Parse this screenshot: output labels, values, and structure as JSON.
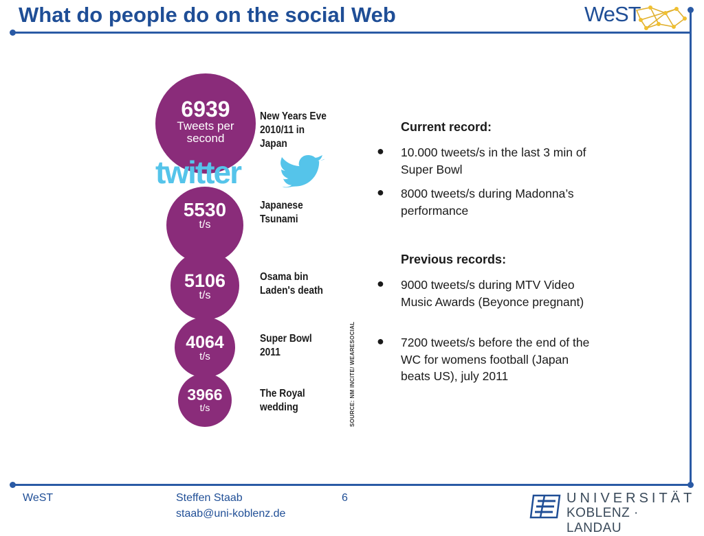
{
  "slide": {
    "title": "What do people do on the social Web"
  },
  "logo": {
    "text": "WeST"
  },
  "twitter_logo": {
    "text": "twitter",
    "color": "#55c4ea"
  },
  "circles": [
    {
      "value": "6939",
      "unit_line1": "Tweets per",
      "unit_line2": "second",
      "event_line1": "New Years Eve",
      "event_line2": "2010/11 in",
      "event_line3": "Japan"
    },
    {
      "value": "5530",
      "unit_line1": "t/s",
      "event_line1": "Japanese",
      "event_line2": "Tsunami"
    },
    {
      "value": "5106",
      "unit_line1": "t/s",
      "event_line1": "Osama bin",
      "event_line2": "Laden's death"
    },
    {
      "value": "4064",
      "unit_line1": "t/s",
      "event_line1": "Super Bowl",
      "event_line2": "2011"
    },
    {
      "value": "3966",
      "unit_line1": "t/s",
      "event_line1": "The Royal",
      "event_line2": "wedding"
    }
  ],
  "source": "SOURCE: NM INCITE/ WEARESOCIAL",
  "current": {
    "heading": "Current record:",
    "items": [
      "10.000 tweets/s in the last 3 min of Super Bowl",
      "8000 tweets/s during Madonna’s performance"
    ]
  },
  "previous": {
    "heading": "Previous records:",
    "items": [
      "9000 tweets/s during MTV Video Music Awards (Beyonce pregnant)",
      "7200 tweets/s before the end of the WC for womens football (Japan beats US), july 2011"
    ]
  },
  "footer": {
    "org": "WeST",
    "author": "Steffen Staab",
    "email": "staab@uni-koblenz.de",
    "page": "6"
  },
  "university": {
    "line1": "UNIVERSITÄT",
    "line2": "KOBLENZ · LANDAU"
  },
  "colors": {
    "accent": "#1f4e96",
    "circle": "#8a2c7a"
  }
}
